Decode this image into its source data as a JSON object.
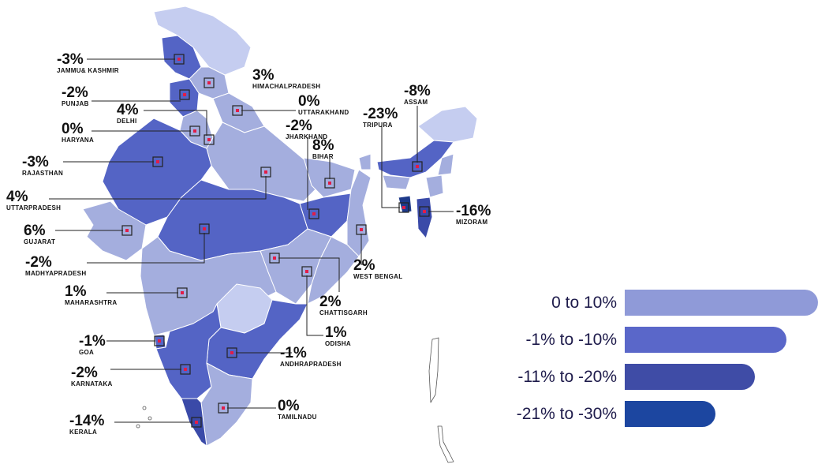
{
  "map": {
    "states": [
      {
        "name": "JAMMU& KASHMIR",
        "value": "-3%",
        "fill": "#5464c5"
      },
      {
        "name": "HIMACHALPRADESH",
        "value": "3%",
        "fill": "#a4aede"
      },
      {
        "name": "PUNJAB",
        "value": "-2%",
        "fill": "#5464c5"
      },
      {
        "name": "DELHI",
        "value": "4%",
        "fill": "#a4aede"
      },
      {
        "name": "UTTARAKHAND",
        "value": "0%",
        "fill": "#a4aede"
      },
      {
        "name": "HARYANA",
        "value": "0%",
        "fill": "#a4aede"
      },
      {
        "name": "RAJASTHAN",
        "value": "-3%",
        "fill": "#5464c5"
      },
      {
        "name": "UTTARPRADESH",
        "value": "4%",
        "fill": "#a4aede"
      },
      {
        "name": "GUJARAT",
        "value": "6%",
        "fill": "#a4aede"
      },
      {
        "name": "MADHYAPRADESH",
        "value": "-2%",
        "fill": "#5464c5"
      },
      {
        "name": "MAHARASHTRA",
        "value": "1%",
        "fill": "#a4aede"
      },
      {
        "name": "GOA",
        "value": "-1%",
        "fill": "#5464c5"
      },
      {
        "name": "KARNATAKA",
        "value": "-2%",
        "fill": "#5464c5"
      },
      {
        "name": "KERALA",
        "value": "-14%",
        "fill": "#3a4aa8"
      },
      {
        "name": "TAMILNADU",
        "value": "0%",
        "fill": "#a4aede"
      },
      {
        "name": "ANDHRAPRADESH",
        "value": "-1%",
        "fill": "#5464c5"
      },
      {
        "name": "ODISHA",
        "value": "1%",
        "fill": "#a4aede"
      },
      {
        "name": "CHATTISGARH",
        "value": "2%",
        "fill": "#a4aede"
      },
      {
        "name": "WEST BENGAL",
        "value": "2%",
        "fill": "#a4aede"
      },
      {
        "name": "JHARKHAND",
        "value": "-2%",
        "fill": "#5464c5"
      },
      {
        "name": "BIHAR",
        "value": "8%",
        "fill": "#a4aede"
      },
      {
        "name": "TRIPURA",
        "value": "-23%",
        "fill": "#1e3a8a"
      },
      {
        "name": "ASSAM",
        "value": "-8%",
        "fill": "#5464c5"
      },
      {
        "name": "MIZORAM",
        "value": "-16%",
        "fill": "#3a4aa8"
      }
    ]
  },
  "legend": [
    {
      "label": "0 to 10%",
      "color": "#8f9ad8"
    },
    {
      "label": "-1% to -10%",
      "color": "#5a67c9"
    },
    {
      "label": "-11% to -20%",
      "color": "#3f4ca6"
    },
    {
      "label": "-21% to -30%",
      "color": "#1c46a0"
    }
  ]
}
